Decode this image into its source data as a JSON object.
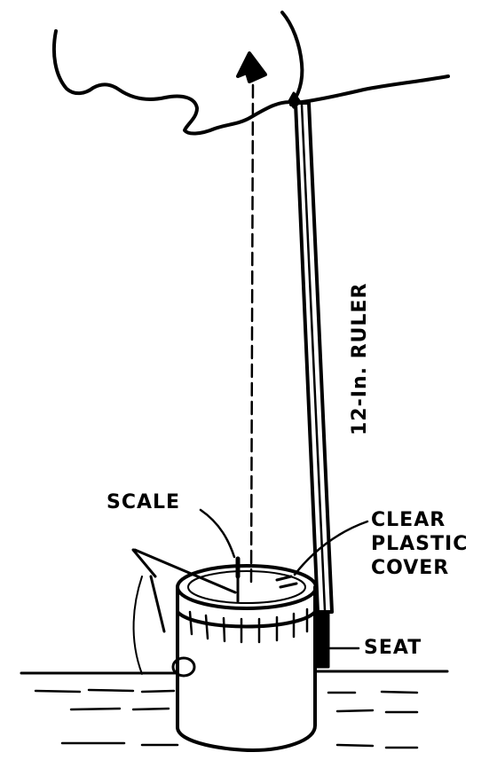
{
  "labels": {
    "ruler": "12-In. RULER",
    "scale": "SCALE",
    "cover_line1": "CLEAR",
    "cover_line2": "PLASTIC",
    "cover_line3": "COVER",
    "seat": "SEAT"
  },
  "colors": {
    "ink": "#000000",
    "paper": "#ffffff"
  }
}
